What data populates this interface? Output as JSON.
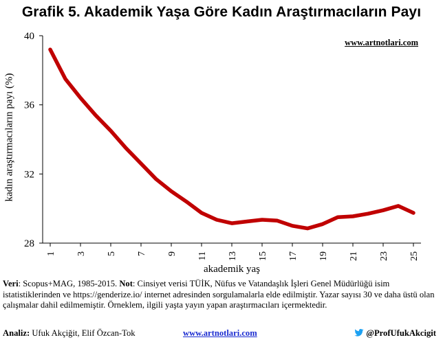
{
  "chart_data": {
    "type": "line",
    "title": "Grafik 5. Akademik Yaşa Göre Kadın Araştırmacıların Payı",
    "xlabel": "akademik yaş",
    "ylabel": "kadın araştırmacıların payı (%)",
    "x": [
      1,
      2,
      3,
      4,
      5,
      6,
      7,
      8,
      9,
      10,
      11,
      12,
      13,
      14,
      15,
      16,
      17,
      18,
      19,
      20,
      21,
      22,
      23,
      24,
      25
    ],
    "series": [
      {
        "values": [
          39.2,
          37.5,
          36.4,
          35.4,
          34.5,
          33.5,
          32.6,
          31.7,
          31.0,
          30.4,
          29.75,
          29.35,
          29.15,
          29.25,
          29.35,
          29.3,
          29.0,
          28.85,
          29.1,
          29.5,
          29.55,
          29.7,
          29.9,
          30.15,
          29.75
        ],
        "color": "#c00000"
      }
    ],
    "ylim": [
      28,
      40
    ],
    "yticks": [
      28,
      32,
      36,
      40
    ],
    "xticks": [
      1,
      3,
      5,
      7,
      9,
      11,
      13,
      15,
      17,
      19,
      21,
      23,
      25
    ],
    "xlim": [
      0.5,
      25.5
    ],
    "grid": false,
    "legend": "none"
  },
  "watermark": "www.artnotlari.com",
  "note": {
    "veri_label": "Veri",
    "veri_text": ": Scopus+MAG, 1985-2015. ",
    "not_label": "Not",
    "not_text": ": Cinsiyet verisi TÜİK, Nüfus ve Vatandaşlık İşleri Genel Müdürlüğü isim istatistiklerinden ve https://genderize.io/ internet adresinden sorgulamalarla elde edilmiştir. Yazar sayısı 30 ve daha üstü olan çalışmalar dahil edilmemiştir. Örneklem, ilgili yaşta yayın yapan araştırmacıları içermektedir."
  },
  "footer": {
    "analiz_label": "Analiz:",
    "authors": " Ufuk Akçiğit, Elif Özcan-Tok",
    "site": "www.artnotlari.com",
    "twitter": "@ProfUfukAkcigit",
    "twitter_icon": "twitter-bird-icon",
    "twitter_color": "#1da1f2"
  }
}
